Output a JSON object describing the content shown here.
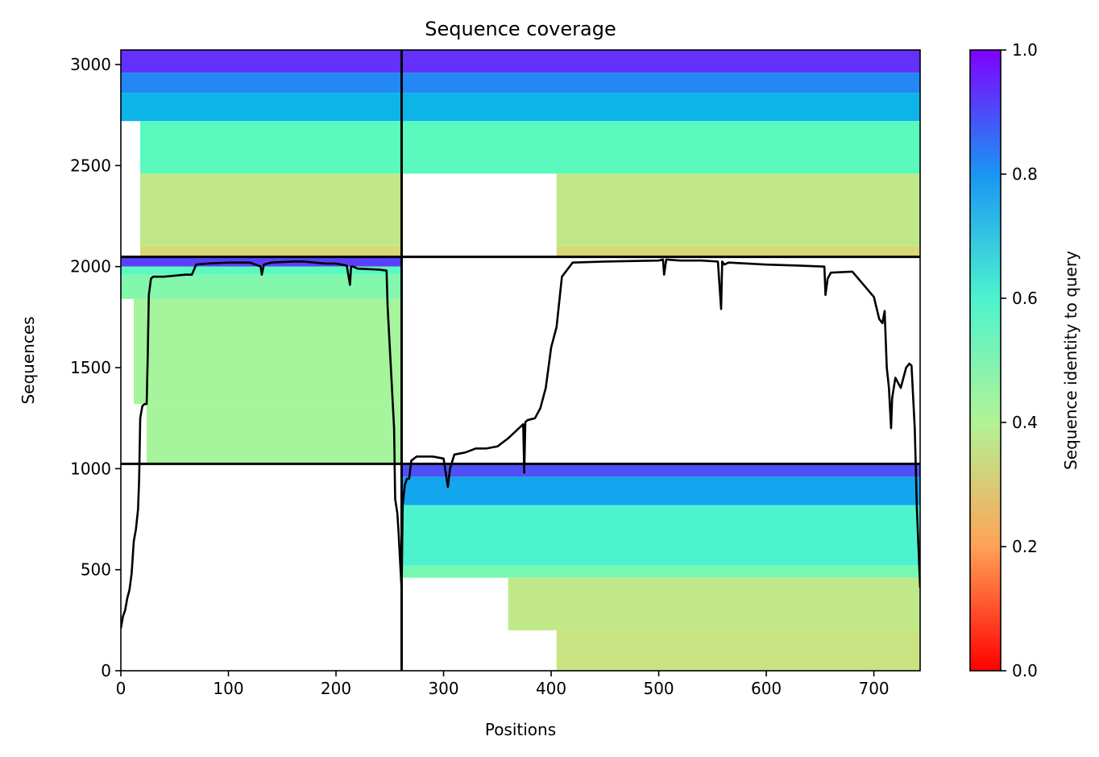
{
  "chart_data": {
    "type": "heatmap",
    "title": "Sequence coverage",
    "xlabel": "Positions",
    "ylabel": "Sequences",
    "xlim": [
      0,
      743
    ],
    "ylim": [
      0,
      3072
    ],
    "xticks": [
      {
        "value": 0,
        "label": "0"
      },
      {
        "value": 100,
        "label": "100"
      },
      {
        "value": 200,
        "label": "200"
      },
      {
        "value": 300,
        "label": "300"
      },
      {
        "value": 400,
        "label": "400"
      },
      {
        "value": 500,
        "label": "500"
      },
      {
        "value": 600,
        "label": "600"
      },
      {
        "value": 700,
        "label": "700"
      }
    ],
    "yticks": [
      {
        "value": 0,
        "label": "0"
      },
      {
        "value": 500,
        "label": "500"
      },
      {
        "value": 1000,
        "label": "1000"
      },
      {
        "value": 1500,
        "label": "1500"
      },
      {
        "value": 2000,
        "label": "2000"
      },
      {
        "value": 2500,
        "label": "2500"
      },
      {
        "value": 3000,
        "label": "3000"
      }
    ],
    "boundaries": {
      "chain_break_x": 261,
      "block_lines_y": [
        1024,
        2048
      ]
    },
    "blocks": [
      {
        "x_start": 0,
        "x_end": 261,
        "y_start": 1024,
        "y_end": 2048,
        "bands": [
          {
            "y_start": 2000,
            "y_end": 2048,
            "identity": 0.92,
            "x_start": 0
          },
          {
            "y_start": 1960,
            "y_end": 2000,
            "identity": 0.55,
            "x_start": 0
          },
          {
            "y_start": 1840,
            "y_end": 1960,
            "identity": 0.48,
            "x_start": 0
          },
          {
            "y_start": 1320,
            "y_end": 1840,
            "identity": 0.42,
            "x_start": 12
          },
          {
            "y_start": 1024,
            "y_end": 1320,
            "identity": 0.42,
            "x_start": 24
          }
        ]
      },
      {
        "x_start": 0,
        "x_end": 261,
        "y_start": 2048,
        "y_end": 3072,
        "bands": [
          {
            "y_start": 2960,
            "y_end": 3072,
            "identity": 0.94,
            "x_start": 0
          },
          {
            "y_start": 2860,
            "y_end": 2960,
            "identity": 0.82,
            "x_start": 0
          },
          {
            "y_start": 2720,
            "y_end": 2860,
            "identity": 0.7,
            "x_start": 0
          },
          {
            "y_start": 2460,
            "y_end": 2720,
            "identity": 0.55,
            "x_start": 18
          },
          {
            "y_start": 2100,
            "y_end": 2460,
            "identity": 0.36,
            "x_start": 18
          },
          {
            "y_start": 2048,
            "y_end": 2100,
            "identity": 0.3,
            "x_start": 18
          }
        ]
      },
      {
        "x_start": 261,
        "x_end": 743,
        "y_start": 2048,
        "y_end": 3072,
        "bands": [
          {
            "y_start": 2960,
            "y_end": 3072,
            "identity": 0.94,
            "x_start": 261
          },
          {
            "y_start": 2860,
            "y_end": 2960,
            "identity": 0.82,
            "x_start": 261
          },
          {
            "y_start": 2720,
            "y_end": 2860,
            "identity": 0.7,
            "x_start": 261
          },
          {
            "y_start": 2460,
            "y_end": 2720,
            "identity": 0.55,
            "x_start": 261
          },
          {
            "y_start": 2100,
            "y_end": 2460,
            "identity": 0.36,
            "x_start": 405
          },
          {
            "y_start": 2048,
            "y_end": 2100,
            "identity": 0.3,
            "x_start": 405
          }
        ]
      },
      {
        "x_start": 261,
        "x_end": 743,
        "y_start": 0,
        "y_end": 1024,
        "bands": [
          {
            "y_start": 960,
            "y_end": 1024,
            "identity": 0.9,
            "x_start": 261
          },
          {
            "y_start": 820,
            "y_end": 960,
            "identity": 0.75,
            "x_start": 261
          },
          {
            "y_start": 520,
            "y_end": 820,
            "identity": 0.6,
            "x_start": 261
          },
          {
            "y_start": 460,
            "y_end": 520,
            "identity": 0.5,
            "x_start": 261
          },
          {
            "y_start": 200,
            "y_end": 460,
            "identity": 0.36,
            "x_start": 360
          },
          {
            "y_start": 0,
            "y_end": 200,
            "identity": 0.34,
            "x_start": 405
          }
        ]
      }
    ],
    "coverage_line": {
      "x": [
        0,
        2,
        4,
        6,
        8,
        10,
        12,
        14,
        16,
        17,
        18,
        20,
        22,
        24,
        25,
        26,
        28,
        30,
        40,
        60,
        66,
        70,
        80,
        100,
        120,
        130,
        131,
        133,
        140,
        160,
        170,
        180,
        190,
        200,
        210,
        213,
        214,
        216,
        220,
        240,
        247,
        248,
        250,
        252,
        254,
        255,
        257,
        258,
        260,
        261,
        262,
        264,
        266,
        268,
        270,
        275,
        280,
        290,
        300,
        304,
        306,
        310,
        320,
        330,
        340,
        350,
        360,
        370,
        374,
        375,
        376,
        378,
        385,
        390,
        395,
        400,
        405,
        410,
        420,
        450,
        500,
        504,
        505,
        507,
        520,
        540,
        555,
        558,
        559,
        561,
        565,
        600,
        630,
        654,
        655,
        657,
        660,
        680,
        700,
        705,
        708,
        710,
        712,
        714,
        716,
        717,
        720,
        725,
        730,
        733,
        735,
        738,
        740,
        743
      ],
      "y": [
        210,
        270,
        300,
        360,
        400,
        480,
        640,
        700,
        800,
        950,
        1250,
        1310,
        1320,
        1320,
        1560,
        1860,
        1940,
        1950,
        1950,
        1960,
        1960,
        2010,
        2015,
        2020,
        2020,
        2000,
        1960,
        2010,
        2020,
        2025,
        2025,
        2020,
        2015,
        2015,
        2005,
        1910,
        2000,
        2000,
        1990,
        1985,
        1980,
        1800,
        1600,
        1400,
        1200,
        850,
        780,
        700,
        500,
        400,
        820,
        920,
        950,
        950,
        1040,
        1060,
        1060,
        1060,
        1050,
        910,
        1000,
        1070,
        1080,
        1100,
        1100,
        1110,
        1150,
        1200,
        1220,
        980,
        1230,
        1240,
        1250,
        1300,
        1400,
        1600,
        1700,
        1950,
        2020,
        2025,
        2030,
        2035,
        1960,
        2035,
        2030,
        2030,
        2025,
        1790,
        2025,
        2010,
        2020,
        2010,
        2005,
        2000,
        1860,
        1940,
        1970,
        1975,
        1850,
        1740,
        1720,
        1780,
        1500,
        1400,
        1200,
        1350,
        1450,
        1400,
        1500,
        1520,
        1510,
        1200,
        800,
        410
      ]
    },
    "colorbar": {
      "label": "Sequence identity to query",
      "range": [
        0,
        1
      ],
      "colormap": "rainbow_r",
      "ticks": [
        {
          "value": 0.0,
          "label": "0.0"
        },
        {
          "value": 0.2,
          "label": "0.2"
        },
        {
          "value": 0.4,
          "label": "0.4"
        },
        {
          "value": 0.6,
          "label": "0.6"
        },
        {
          "value": 0.8,
          "label": "0.8"
        },
        {
          "value": 1.0,
          "label": "1.0"
        }
      ]
    },
    "grid": false,
    "legend": "none"
  }
}
